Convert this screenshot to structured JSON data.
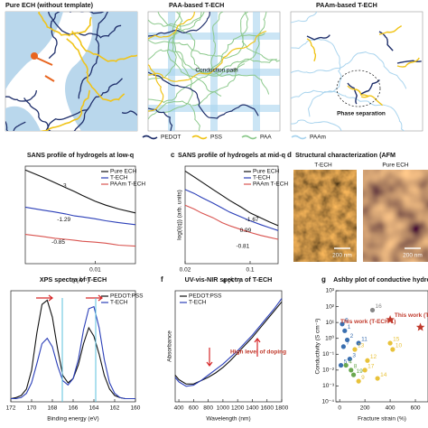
{
  "schematics": {
    "panels": [
      {
        "title": "Pure ECH (without template)"
      },
      {
        "title": "PAA-based T-ECH"
      },
      {
        "title": "PAAm-based T-ECH"
      }
    ],
    "conduction": "Conduction path",
    "phase": "Phase separation",
    "legend": [
      {
        "name": "PEDOT",
        "color": "#1f2f6b"
      },
      {
        "name": "PSS",
        "color": "#f0c419"
      },
      {
        "name": "PAA",
        "color": "#8cc98c"
      },
      {
        "name": "PAAm",
        "color": "#a9d4ee"
      }
    ]
  },
  "afm": {
    "label": "d",
    "title": "Structural characterization (AFM",
    "images": [
      "T-ECH",
      "Pure ECH"
    ],
    "scale_bar": "200 nm"
  },
  "chart_data": [
    {
      "type": "line",
      "title": "SANS profile of hydrogels at low-q",
      "x_label": "q (Å⁻¹)",
      "xscale": "log",
      "xlim": [
        0.003,
        0.02
      ],
      "xticks": [
        0.01
      ],
      "ylim": [
        0,
        10
      ],
      "x": [
        0.003,
        0.004,
        0.005,
        0.006,
        0.007,
        0.008,
        0.01,
        0.012,
        0.015,
        0.02
      ],
      "series": [
        {
          "name": "Pure ECH",
          "color": "#111111",
          "values": [
            9.6,
            8.9,
            8.3,
            7.8,
            7.4,
            7.0,
            6.4,
            6.0,
            5.6,
            5.2
          ]
        },
        {
          "name": "T-ECH",
          "color": "#2b3fb8",
          "values": [
            5.8,
            5.5,
            5.3,
            5.1,
            4.9,
            4.8,
            4.6,
            4.4,
            4.2,
            4.0
          ]
        },
        {
          "name": "PAAm T-ECH",
          "color": "#d9534f",
          "values": [
            3.0,
            2.8,
            2.6,
            2.5,
            2.4,
            2.3,
            2.2,
            2.1,
            1.9,
            1.8
          ]
        }
      ],
      "annotations": [
        "-3",
        "-1.29",
        "-0.85"
      ]
    },
    {
      "type": "line",
      "panel": "c",
      "title": "SANS profile of hydrogels at mid-q",
      "x_label": "q (Å⁻¹)",
      "y_label": "log(I(q)) (arb. units)",
      "xscale": "log",
      "xlim": [
        0.02,
        0.2
      ],
      "xticks": [
        0.02,
        0.1
      ],
      "ylim": [
        0,
        10
      ],
      "x": [
        0.02,
        0.025,
        0.03,
        0.04,
        0.05,
        0.06,
        0.08,
        0.1,
        0.13,
        0.16,
        0.2
      ],
      "series": [
        {
          "name": "Pure ECH",
          "color": "#111111",
          "values": [
            9.5,
            8.9,
            8.4,
            7.6,
            7.0,
            6.5,
            5.8,
            5.2,
            4.7,
            4.3,
            3.9
          ]
        },
        {
          "name": "T-ECH",
          "color": "#2b3fb8",
          "values": [
            7.6,
            7.2,
            6.8,
            6.2,
            5.7,
            5.3,
            4.8,
            4.4,
            4.0,
            3.7,
            3.4
          ]
        },
        {
          "name": "PAAm T-ECH",
          "color": "#d9534f",
          "values": [
            6.0,
            5.6,
            5.2,
            4.7,
            4.2,
            3.9,
            3.5,
            3.2,
            2.9,
            2.7,
            2.5
          ]
        }
      ],
      "annotations": [
        "-1.67",
        "0.99",
        "-0.81"
      ]
    },
    {
      "type": "line",
      "title": "XPS spectra of T-ECH",
      "x_label": "Binding energy (eV)",
      "xlim": [
        172,
        160
      ],
      "xticks": [
        172,
        170,
        168,
        166,
        164,
        162,
        160
      ],
      "ylim": [
        0,
        10.5
      ],
      "x": [
        172,
        171.5,
        171,
        170.5,
        170,
        169.5,
        169,
        168.5,
        168,
        167.5,
        167,
        166.5,
        166,
        165.5,
        165,
        164.5,
        164,
        163.5,
        163,
        162.5,
        162,
        161.5,
        161,
        160.5,
        160
      ],
      "series": [
        {
          "name": "PEDOT:PSS",
          "color": "#111111",
          "values": [
            0.3,
            0.4,
            0.6,
            1.2,
            3.0,
            6.5,
            9.2,
            9.6,
            8.0,
            5.0,
            2.5,
            1.8,
            2.2,
            3.5,
            5.5,
            7.0,
            6.2,
            4.5,
            2.5,
            1.2,
            0.6,
            0.4,
            0.3,
            0.3,
            0.3
          ]
        },
        {
          "name": "T-ECH",
          "color": "#2b3fb8",
          "values": [
            0.3,
            0.3,
            0.4,
            0.8,
            1.8,
            3.6,
            5.5,
            6.0,
            5.2,
            3.4,
            2.0,
            1.6,
            2.2,
            4.0,
            6.8,
            8.8,
            9.0,
            7.0,
            4.0,
            1.8,
            0.8,
            0.4,
            0.3,
            0.3,
            0.3
          ]
        }
      ]
    },
    {
      "type": "line",
      "panel": "f",
      "title": "UV-vis-NIR spectra of T-ECH",
      "x_label": "Wavelength (nm)",
      "y_label": "Absorbance",
      "xlim": [
        350,
        1800
      ],
      "xticks": [
        400,
        600,
        800,
        1000,
        1200,
        1400,
        1600,
        1800
      ],
      "ylim": [
        0,
        10
      ],
      "x": [
        350,
        400,
        500,
        600,
        700,
        800,
        900,
        1000,
        1100,
        1200,
        1300,
        1400,
        1500,
        1600,
        1700,
        1800
      ],
      "series": [
        {
          "name": "PEDOT:PSS",
          "color": "#111111",
          "values": [
            2.4,
            2.0,
            1.6,
            1.6,
            1.9,
            2.2,
            2.6,
            3.1,
            3.7,
            4.4,
            5.1,
            5.8,
            6.6,
            7.4,
            8.2,
            9.0
          ]
        },
        {
          "name": "T-ECH",
          "color": "#2b3fb8",
          "values": [
            2.2,
            1.8,
            1.4,
            1.5,
            1.9,
            2.4,
            2.9,
            3.4,
            4.0,
            4.6,
            5.3,
            6.0,
            6.8,
            7.6,
            8.4,
            9.3
          ]
        }
      ],
      "annotations": [
        "High level of doping"
      ]
    },
    {
      "type": "scatter",
      "panel": "g",
      "title": "Ashby plot of conductive hydro",
      "x_label": "Fracture strain (%)",
      "y_label": "Conductivity (S cm⁻¹)",
      "yscale": "log",
      "xlim": [
        -30,
        700
      ],
      "xticks": [
        0,
        200,
        400,
        600
      ],
      "ylim": [
        0.0001,
        1000
      ],
      "yticks": [
        {
          "value": 0.0001,
          "label": "10⁻⁴"
        },
        {
          "value": 0.001,
          "label": "10⁻³"
        },
        {
          "value": 0.01,
          "label": "10⁻²"
        },
        {
          "value": 0.1,
          "label": "10⁻¹"
        },
        {
          "value": 1,
          "label": "10⁰"
        },
        {
          "value": 10,
          "label": "10¹"
        },
        {
          "value": 100,
          "label": "10²"
        },
        {
          "value": 1000,
          "label": "10³"
        }
      ],
      "series": [
        {
          "color": "#3a6fb0",
          "x": [
            20,
            40,
            60,
            30,
            80,
            150,
            10
          ],
          "values": [
            8,
            3,
            0.8,
            0.3,
            0.05,
            0.5,
            0.02
          ],
          "labels": [
            "6",
            "1",
            "2",
            "7",
            "3",
            "11",
            "5"
          ]
        },
        {
          "color": "#e8c23a",
          "x": [
            120,
            200,
            300,
            400,
            220,
            150,
            420
          ],
          "values": [
            0.2,
            0.01,
            0.003,
            0.5,
            0.04,
            0.002,
            0.2
          ],
          "labels": [
            "13",
            "17",
            "14",
            "15",
            "12",
            "9",
            "10"
          ]
        },
        {
          "color": "#6aa84f",
          "x": [
            50,
            90,
            110
          ],
          "values": [
            0.02,
            0.01,
            0.005
          ],
          "labels": [
            "4",
            "8",
            "19"
          ]
        },
        {
          "color": "#888888",
          "x": [
            260
          ],
          "values": [
            60
          ],
          "labels": [
            "16"
          ]
        },
        {
          "color": "#c0392b",
          "marker": "star",
          "x": [
            400,
            640
          ],
          "values": [
            15,
            5
          ]
        }
      ],
      "annotations": [
        "This work (T-ECH 1)",
        "This work (T-ECH"
      ]
    }
  ]
}
